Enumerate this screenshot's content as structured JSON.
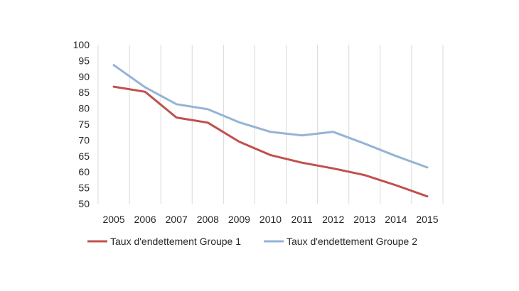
{
  "chart_data": {
    "type": "line",
    "title": "",
    "xlabel": "",
    "ylabel": "",
    "categories": [
      "2005",
      "2006",
      "2007",
      "2008",
      "2009",
      "2010",
      "2011",
      "2012",
      "2013",
      "2014",
      "2015"
    ],
    "y_ticks": [
      50,
      55,
      60,
      65,
      70,
      75,
      80,
      85,
      90,
      95,
      100
    ],
    "ylim": [
      50,
      100
    ],
    "grid": "vertical",
    "legend_position": "bottom",
    "series": [
      {
        "name": "Taux d'endettement Groupe 1",
        "color": "#c0504d",
        "values": [
          86.8,
          85.2,
          77.1,
          75.5,
          69.5,
          65.3,
          62.9,
          61.1,
          59.0,
          55.8,
          52.3
        ]
      },
      {
        "name": "Taux d'endettement Groupe 2",
        "color": "#95b3d7",
        "values": [
          93.6,
          86.6,
          81.3,
          79.7,
          75.6,
          72.6,
          71.5,
          72.6,
          68.9,
          65.0,
          61.4
        ]
      }
    ]
  }
}
